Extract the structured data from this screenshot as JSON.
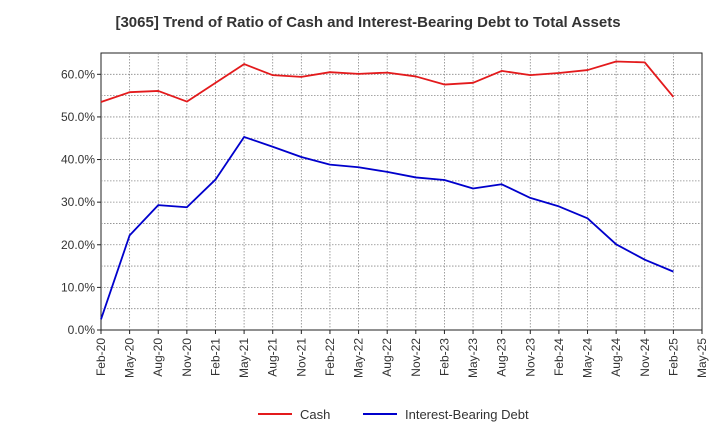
{
  "chart_data": {
    "type": "line",
    "title": "[3065]  Trend of Ratio of Cash and Interest-Bearing Debt to Total Assets",
    "xlabel": "",
    "ylabel": "",
    "ylim": [
      0,
      65
    ],
    "y_ticks": [
      "0.0%",
      "10.0%",
      "20.0%",
      "30.0%",
      "40.0%",
      "50.0%",
      "60.0%"
    ],
    "y_tick_values": [
      0,
      10,
      20,
      30,
      40,
      50,
      60
    ],
    "x_ticks": [
      "Feb-20",
      "May-20",
      "Aug-20",
      "Nov-20",
      "Feb-21",
      "May-21",
      "Aug-21",
      "Nov-21",
      "Feb-22",
      "May-22",
      "Aug-22",
      "Nov-22",
      "Feb-23",
      "May-23",
      "Aug-23",
      "Nov-23",
      "Feb-24",
      "May-24",
      "Aug-24",
      "Nov-24",
      "Feb-25",
      "May-25"
    ],
    "x": [
      "Feb-20",
      "May-20",
      "Aug-20",
      "Nov-20",
      "Feb-21",
      "May-21",
      "Aug-21",
      "Nov-21",
      "Feb-22",
      "May-22",
      "Aug-22",
      "Nov-22",
      "Feb-23",
      "May-23",
      "Aug-23",
      "Nov-23",
      "Feb-24",
      "May-24",
      "Aug-24",
      "Nov-24",
      "Feb-25"
    ],
    "grid": true,
    "legend_position": "bottom-center",
    "series": [
      {
        "name": "Cash",
        "color": "#e31a1c",
        "values": [
          53.5,
          55.8,
          56.1,
          53.6,
          58.0,
          62.4,
          59.8,
          59.4,
          60.5,
          60.1,
          60.4,
          59.5,
          57.6,
          58.0,
          60.8,
          59.8,
          60.3,
          61.0,
          63.0,
          62.8,
          54.7
        ]
      },
      {
        "name": "Interest-Bearing Debt",
        "color": "#0000cc",
        "values": [
          2.5,
          22.2,
          29.3,
          28.8,
          35.3,
          45.3,
          43.0,
          40.6,
          38.8,
          38.2,
          37.1,
          35.8,
          35.2,
          33.2,
          34.2,
          31.0,
          29.0,
          26.2,
          20.1,
          16.5,
          13.7
        ]
      }
    ]
  }
}
